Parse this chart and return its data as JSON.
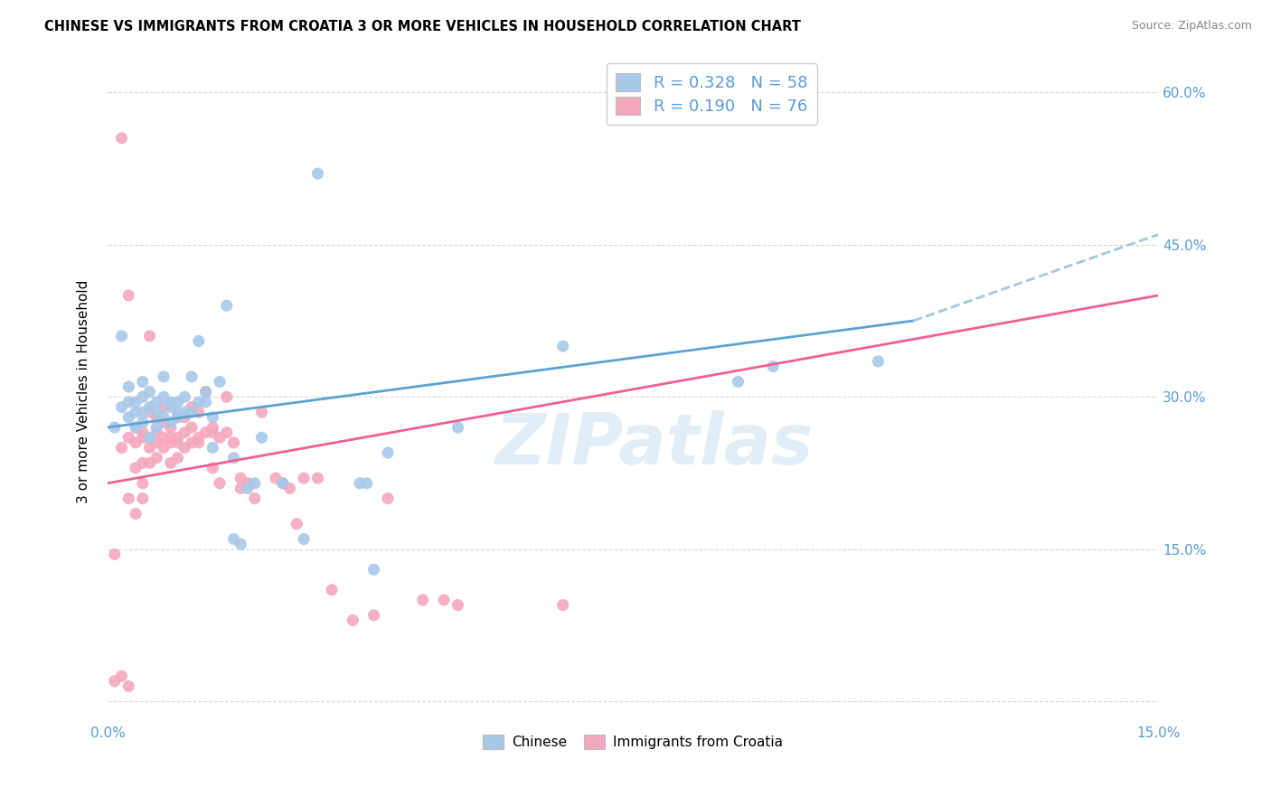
{
  "title": "CHINESE VS IMMIGRANTS FROM CROATIA 3 OR MORE VEHICLES IN HOUSEHOLD CORRELATION CHART",
  "source": "Source: ZipAtlas.com",
  "ylabel": "3 or more Vehicles in Household",
  "xlim": [
    0.0,
    0.15
  ],
  "ylim": [
    -0.02,
    0.63
  ],
  "legend_label_1": "R = 0.328   N = 58",
  "legend_label_2": "R = 0.190   N = 76",
  "legend_label_chinese": "Chinese",
  "legend_label_croatia": "Immigrants from Croatia",
  "color_chinese": "#a8c8e8",
  "color_croatia": "#f4a8be",
  "color_line_chinese": "#5ba3d0",
  "color_line_croatia": "#f06090",
  "color_line_chinese_extend": "#a0c8e0",
  "watermark": "ZIPatlas",
  "chinese_x": [
    0.001,
    0.002,
    0.002,
    0.003,
    0.003,
    0.003,
    0.004,
    0.004,
    0.004,
    0.005,
    0.005,
    0.005,
    0.005,
    0.006,
    0.006,
    0.006,
    0.007,
    0.007,
    0.007,
    0.008,
    0.008,
    0.008,
    0.009,
    0.009,
    0.009,
    0.01,
    0.01,
    0.01,
    0.011,
    0.011,
    0.012,
    0.012,
    0.013,
    0.013,
    0.014,
    0.014,
    0.015,
    0.015,
    0.016,
    0.017,
    0.018,
    0.018,
    0.019,
    0.02,
    0.021,
    0.022,
    0.025,
    0.028,
    0.03,
    0.036,
    0.037,
    0.038,
    0.04,
    0.05,
    0.065,
    0.09,
    0.095,
    0.11
  ],
  "chinese_y": [
    0.27,
    0.29,
    0.36,
    0.28,
    0.295,
    0.31,
    0.285,
    0.295,
    0.27,
    0.3,
    0.275,
    0.315,
    0.285,
    0.29,
    0.26,
    0.305,
    0.295,
    0.285,
    0.27,
    0.3,
    0.28,
    0.32,
    0.29,
    0.275,
    0.295,
    0.285,
    0.28,
    0.295,
    0.285,
    0.3,
    0.32,
    0.285,
    0.355,
    0.295,
    0.295,
    0.305,
    0.28,
    0.25,
    0.315,
    0.39,
    0.24,
    0.16,
    0.155,
    0.21,
    0.215,
    0.26,
    0.215,
    0.16,
    0.52,
    0.215,
    0.215,
    0.13,
    0.245,
    0.27,
    0.35,
    0.315,
    0.33,
    0.335
  ],
  "croatia_x": [
    0.001,
    0.001,
    0.002,
    0.002,
    0.002,
    0.003,
    0.003,
    0.003,
    0.003,
    0.004,
    0.004,
    0.004,
    0.004,
    0.005,
    0.005,
    0.005,
    0.005,
    0.005,
    0.006,
    0.006,
    0.006,
    0.006,
    0.007,
    0.007,
    0.007,
    0.007,
    0.008,
    0.008,
    0.008,
    0.008,
    0.009,
    0.009,
    0.009,
    0.009,
    0.01,
    0.01,
    0.01,
    0.01,
    0.011,
    0.011,
    0.011,
    0.012,
    0.012,
    0.012,
    0.013,
    0.013,
    0.013,
    0.014,
    0.014,
    0.015,
    0.015,
    0.015,
    0.016,
    0.016,
    0.017,
    0.017,
    0.018,
    0.019,
    0.019,
    0.02,
    0.021,
    0.022,
    0.024,
    0.025,
    0.026,
    0.027,
    0.028,
    0.03,
    0.032,
    0.035,
    0.038,
    0.04,
    0.045,
    0.048,
    0.05,
    0.065
  ],
  "croatia_y": [
    0.02,
    0.145,
    0.025,
    0.25,
    0.555,
    0.015,
    0.2,
    0.26,
    0.4,
    0.185,
    0.23,
    0.255,
    0.27,
    0.2,
    0.235,
    0.265,
    0.26,
    0.215,
    0.25,
    0.235,
    0.285,
    0.36,
    0.24,
    0.265,
    0.28,
    0.255,
    0.25,
    0.26,
    0.275,
    0.29,
    0.255,
    0.27,
    0.235,
    0.26,
    0.26,
    0.24,
    0.28,
    0.255,
    0.265,
    0.25,
    0.28,
    0.255,
    0.27,
    0.29,
    0.285,
    0.26,
    0.255,
    0.305,
    0.265,
    0.23,
    0.265,
    0.27,
    0.26,
    0.215,
    0.3,
    0.265,
    0.255,
    0.22,
    0.21,
    0.215,
    0.2,
    0.285,
    0.22,
    0.215,
    0.21,
    0.175,
    0.22,
    0.22,
    0.11,
    0.08,
    0.085,
    0.2,
    0.1,
    0.1,
    0.095,
    0.095
  ],
  "line_chinese_x0": 0.0,
  "line_chinese_x1": 0.115,
  "line_chinese_y0": 0.27,
  "line_chinese_y1": 0.375,
  "line_chinese_dash_x0": 0.115,
  "line_chinese_dash_x1": 0.15,
  "line_chinese_dash_y0": 0.375,
  "line_chinese_dash_y1": 0.46,
  "line_croatia_x0": 0.0,
  "line_croatia_x1": 0.15,
  "line_croatia_y0": 0.215,
  "line_croatia_y1": 0.4
}
